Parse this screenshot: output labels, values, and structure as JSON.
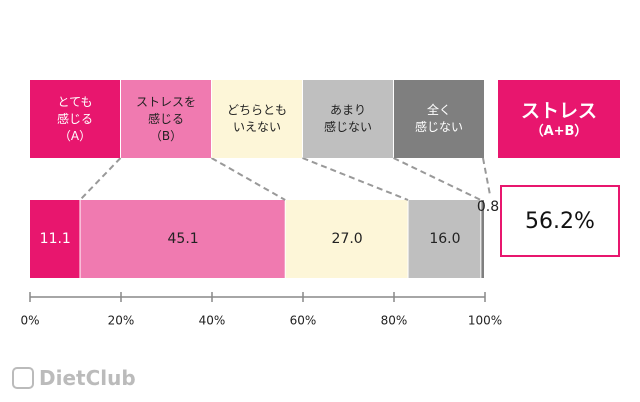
{
  "chart_data": {
    "type": "stacked-bar",
    "xlim": [
      0,
      100
    ],
    "xticks": [
      {
        "value": 0,
        "label": "0%"
      },
      {
        "value": 20,
        "label": "20%"
      },
      {
        "value": 40,
        "label": "40%"
      },
      {
        "value": 60,
        "label": "60%"
      },
      {
        "value": 80,
        "label": "80%"
      },
      {
        "value": 100,
        "label": "100%"
      }
    ],
    "series": [
      {
        "name": "とても\n感じる\n（A）",
        "color": "#e8166e",
        "values": [
          11.1
        ]
      },
      {
        "name": "ストレスを\n感じる\n（B）",
        "color": "#f07ab0",
        "values": [
          45.1
        ]
      },
      {
        "name": "どちらとも\nいえない",
        "color": "#fdf6d8",
        "values": [
          27.0
        ],
        "value_labels": [
          "27.0"
        ]
      },
      {
        "name": "あまり\n感じない",
        "color": "#bfbfbf",
        "values": [
          16.0
        ],
        "value_labels": [
          "16.0"
        ]
      },
      {
        "name": "全く\n感じない",
        "color": "#7f7f7f",
        "values": [
          0.8
        ]
      }
    ],
    "summary": {
      "title": "ストレス",
      "subtitle": "（A+B）",
      "value_label": "56.2%",
      "color": "#e8166e"
    }
  },
  "watermark": "DietClub"
}
